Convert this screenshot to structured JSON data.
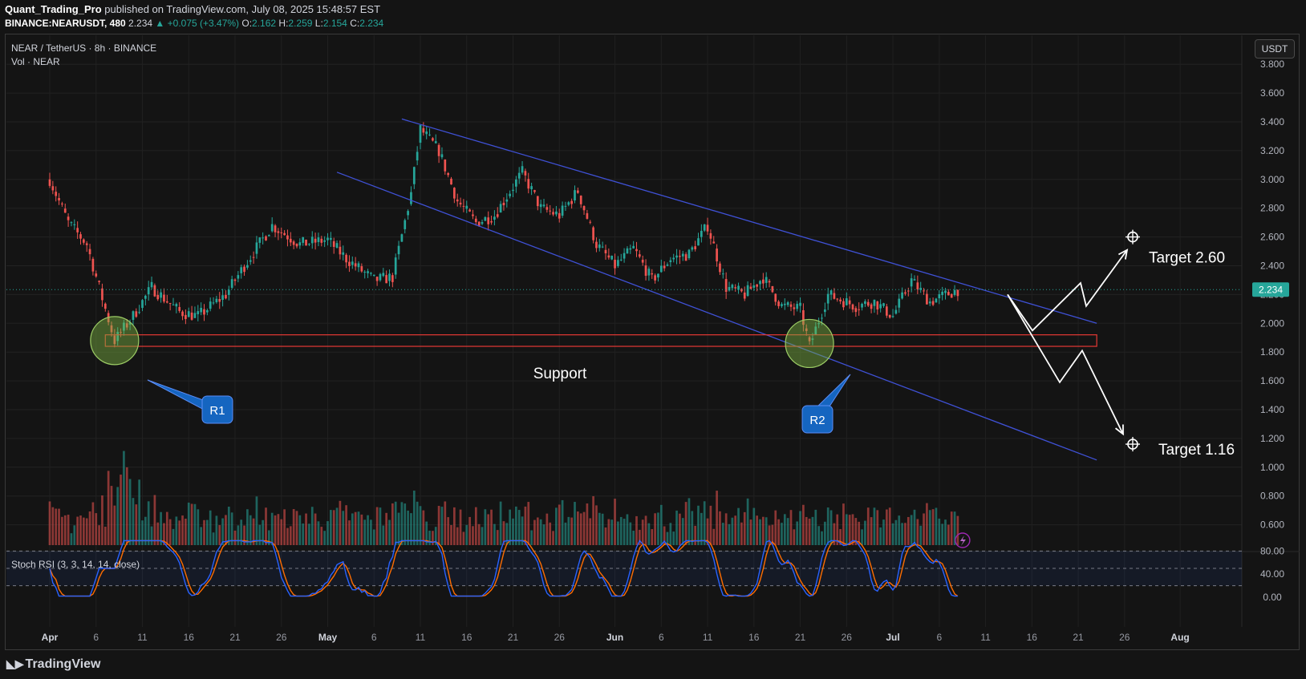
{
  "header": {
    "author": "Quant_Trading_Pro",
    "published": "published on TradingView.com, July 08, 2025 15:48:57 EST",
    "symbol": "BINANCE:NEARUSDT, 480",
    "last": "2.234",
    "change": "▲ +0.075 (+3.47%)",
    "o_label": "O:",
    "o": "2.162",
    "h_label": "H:",
    "h": "2.259",
    "l_label": "L:",
    "l": "2.154",
    "c_label": "C:",
    "c": "2.234"
  },
  "legend": {
    "pair": "NEAR / TetherUS · 8h · BINANCE",
    "volume": "Vol · NEAR",
    "stoch": "Stoch RSI (3, 3, 14, 14, close)"
  },
  "currency_button": "USDT",
  "last_price_tag": "2.234",
  "footer": "TradingView",
  "colors": {
    "up": "#26a69a",
    "down": "#ef5350",
    "channel": "#3f51d6",
    "k_line": "#2962ff",
    "d_line": "#ff6d00",
    "support": "#e53935"
  },
  "chart_data": {
    "type": "candlestick",
    "price_axis": {
      "ticks": [
        "3.800",
        "3.600",
        "3.400",
        "3.200",
        "3.000",
        "2.800",
        "2.600",
        "2.400",
        "2.200",
        "2.000",
        "1.800",
        "1.600",
        "1.400",
        "1.200",
        "1.000",
        "0.800",
        "0.600"
      ]
    },
    "stoch_axis": {
      "ticks": [
        "80.00",
        "40.00",
        "0.00"
      ]
    },
    "x_ticks": [
      "Apr",
      "6",
      "11",
      "16",
      "21",
      "26",
      "May",
      "6",
      "11",
      "16",
      "21",
      "26",
      "Jun",
      "6",
      "11",
      "16",
      "21",
      "26",
      "Jul",
      "6",
      "11",
      "16",
      "21",
      "26",
      "Aug"
    ],
    "bold_ticks": [
      "Apr",
      "May",
      "Jun",
      "Jul",
      "Aug"
    ],
    "price_path": [
      [
        "Apr 1",
        3.0
      ],
      [
        "Apr 3",
        2.7
      ],
      [
        "Apr 5",
        2.55
      ],
      [
        "Apr 7",
        2.1
      ],
      [
        "Apr 8",
        1.88
      ],
      [
        "Apr 10",
        2.05
      ],
      [
        "Apr 12",
        2.25
      ],
      [
        "Apr 15",
        2.08
      ],
      [
        "Apr 17",
        2.05
      ],
      [
        "Apr 20",
        2.2
      ],
      [
        "Apr 22",
        2.4
      ],
      [
        "Apr 25",
        2.68
      ],
      [
        "Apr 28",
        2.55
      ],
      [
        "May 1",
        2.58
      ],
      [
        "May 3",
        2.45
      ],
      [
        "May 6",
        2.3
      ],
      [
        "May 8",
        2.32
      ],
      [
        "May 10",
        2.9
      ],
      [
        "May 11",
        3.35
      ],
      [
        "May 13",
        3.2
      ],
      [
        "May 15",
        2.85
      ],
      [
        "May 17",
        2.7
      ],
      [
        "May 19",
        2.75
      ],
      [
        "May 22",
        3.05
      ],
      [
        "May 24",
        2.8
      ],
      [
        "May 26",
        2.75
      ],
      [
        "May 28",
        2.92
      ],
      [
        "May 30",
        2.55
      ],
      [
        "Jun 1",
        2.4
      ],
      [
        "Jun 3",
        2.52
      ],
      [
        "Jun 5",
        2.3
      ],
      [
        "Jun 7",
        2.45
      ],
      [
        "Jun 9",
        2.48
      ],
      [
        "Jun 11",
        2.68
      ],
      [
        "Jun 13",
        2.25
      ],
      [
        "Jun 15",
        2.2
      ],
      [
        "Jun 17",
        2.32
      ],
      [
        "Jun 19",
        2.12
      ],
      [
        "Jun 21",
        2.1
      ],
      [
        "Jun 22",
        1.84
      ],
      [
        "Jun 24",
        2.2
      ],
      [
        "Jun 27",
        2.12
      ],
      [
        "Jun 29",
        2.15
      ],
      [
        "Jul 1",
        2.05
      ],
      [
        "Jul 3",
        2.3
      ],
      [
        "Jul 5",
        2.15
      ],
      [
        "Jul 8",
        2.234
      ]
    ],
    "channel": {
      "upper": [
        [
          "May 9",
          3.42
        ],
        [
          "Jul 23",
          2.0
        ]
      ],
      "lower": [
        [
          "May 2",
          3.05
        ],
        [
          "Jul 23",
          1.05
        ]
      ]
    },
    "support_zone": {
      "from": "Apr 7",
      "to": "Jul 23",
      "low": 1.84,
      "high": 1.92,
      "label": "Support"
    },
    "markers": [
      {
        "label": "R1",
        "date": "Apr 8",
        "price": 1.88
      },
      {
        "label": "R2",
        "date": "Jun 22",
        "price": 1.86
      }
    ],
    "projections": [
      {
        "label": "Target 2.60",
        "price": 2.6
      },
      {
        "label": "Target 1.16",
        "price": 1.16
      }
    ]
  }
}
